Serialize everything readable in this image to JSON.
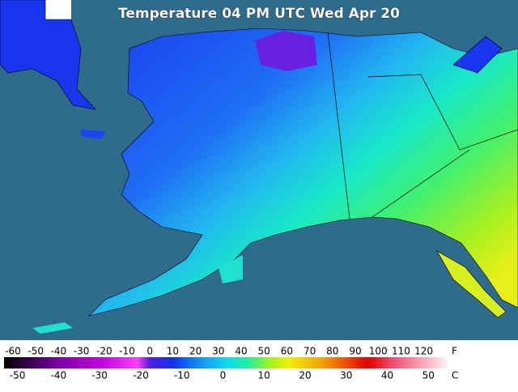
{
  "map": {
    "title": "Temperature 04 PM UTC Wed Apr 20"
  },
  "legend": {
    "fahrenheit_unit": "F",
    "celsius_unit": "C",
    "fahrenheit_ticks": [
      -60,
      -50,
      -40,
      -30,
      -20,
      -10,
      0,
      10,
      20,
      30,
      40,
      50,
      60,
      70,
      80,
      90,
      100,
      110,
      120
    ],
    "celsius_ticks": [
      -50,
      -40,
      -30,
      -20,
      -10,
      0,
      10,
      20,
      30,
      40,
      50
    ]
  }
}
